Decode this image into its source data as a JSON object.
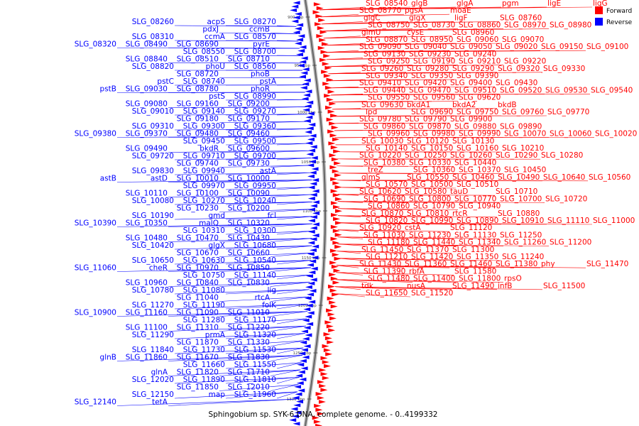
{
  "caption": "Sphingobium sp. SYK-6 DNA, complete genome. - 0..4199332",
  "legend": [
    {
      "label": "Forward",
      "color": "#ff0000"
    },
    {
      "label": "Reverse",
      "color": "#0000ff"
    }
  ],
  "colors": {
    "forward": "#ff0000",
    "reverse": "#0000ff",
    "backbone": "#777777"
  },
  "ticks": [
    "900 kbp",
    "950 kbp",
    "1000 kbp",
    "1050 kbp",
    "1100 kbp",
    "1150 kbp",
    "1200 kbp",
    "1250 kbp",
    "1300 kbp"
  ],
  "reverse_labels": [
    "SLG_08260",
    "acpS",
    "SLG_08270",
    "pdxJ",
    "ccmB",
    "SLG_08310",
    "ccmA",
    "SLG_08570",
    "SLG_08320",
    "SLG_08490",
    "SLG_08690",
    "pyrE",
    "SLG_08550",
    "SLG_08700",
    "SLG_08840",
    "SLG_08510",
    "SLG_08710",
    "SLG_08820",
    "phoU",
    "SLG_08560",
    "SLG_08720",
    "phoB",
    "pstC",
    "SLG_08740",
    "pstA",
    "pstB",
    "SLG_09030",
    "SLG_08780",
    "phoR",
    "pstS",
    "SLG_08990",
    "SLG_09080",
    "SLG_09160",
    "SLG_09200",
    "SLG_09010",
    "SLG_09140",
    "SLG_09270",
    "SLG_09180",
    "SLG_09170",
    "SLG_09310",
    "SLG_09300",
    "SLG_09360",
    "SLG_09380",
    "SLG_09370",
    "SLG_09480",
    "SLG_09460",
    "SLG_09450",
    "SLG_09500",
    "SLG_09490",
    "bkdR",
    "SLG_09600",
    "SLG_09720",
    "SLG_09710",
    "SLG_09700",
    "SLG_09740",
    "SLG_09730",
    "SLG_09830",
    "SLG_09940",
    "astA",
    "astB",
    "astD",
    "SLG_10010",
    "SLG_10000",
    "SLG_09970",
    "SLG_09950",
    "SLG_10110",
    "SLG_10100",
    "SLG_10090",
    "SLG_10080",
    "SLG_10270",
    "SLG_10240",
    "SLG_10230",
    "SLG_10200",
    "SLG_10190",
    "gmd",
    "fcl",
    "SLG_10390",
    "SLG_10350",
    "malQ",
    "SLG_10320",
    "SLG_10310",
    "SLG_10300",
    "SLG_10480",
    "SLG_10470",
    "SLG_10430",
    "SLG_10420",
    "glgX",
    "SLG_10680",
    "SLG_10670",
    "SLG_10660",
    "SLG_10650",
    "SLG_10630",
    "SLG_10540",
    "SLG_11060",
    "cheR",
    "SLG_10970",
    "SLG_10850",
    "SLG_10750",
    "SLG_11140",
    "SLG_10960",
    "SLG_10840",
    "SLG_10830",
    "SLG_10780",
    "SLG_11080",
    "lig",
    "SLG_11040",
    "rtcA",
    "SLG_11270",
    "SLG_11190",
    "folK",
    "SLG_10900",
    "SLG_11160",
    "SLG_11090",
    "SLG_11010",
    "SLG_11280",
    "SLG_11170",
    "SLG_11100",
    "SLG_11310",
    "SLG_11220",
    "SLG_11290",
    "prmA",
    "SLG_11320",
    "SLG_11870",
    "SLG_11330",
    "SLG_11840",
    "SLG_11730",
    "SLG_11530",
    "glnB",
    "SLG_11860",
    "SLG_11670",
    "SLG_11830",
    "SLG_11660",
    "SLG_11550",
    "glnA",
    "SLG_11820",
    "SLG_11710",
    "SLG_12020",
    "SLG_11890",
    "SLG_11810",
    "SLG_11850",
    "SLG_12010",
    "SLG_12150",
    "map",
    "SLG_11960",
    "SLG_12140",
    "tetA"
  ],
  "forward_labels": [
    "SLG_08540",
    "glgB",
    "glgA",
    "pgm",
    "ligE",
    "ligG",
    "SLG_08770",
    "pgsA",
    "moaE",
    "glgC",
    "glgX",
    "ligF",
    "SLG_08760",
    "SLG_08750",
    "SLG_08730",
    "SLG_08860",
    "SLG_08970",
    "SLG_08980",
    "glmU",
    "cysE",
    "SLG_08960",
    "SLG_08870",
    "SLG_08950",
    "SLG_09060",
    "SLG_09070",
    "SLG_09090",
    "SLG_09040",
    "SLG_09050",
    "SLG_09020",
    "SLG_09150",
    "SLG_09100",
    "SLG_09130",
    "SLG_09230",
    "SLG_09240",
    "SLG_09250",
    "SLG_09190",
    "SLG_09210",
    "SLG_09220",
    "SLG_09260",
    "SLG_09280",
    "SLG_09290",
    "SLG_09320",
    "SLG_09330",
    "SLG_09340",
    "SLG_09350",
    "SLG_09390",
    "SLG_09410",
    "SLG_09420",
    "SLG_09400",
    "SLG_09430",
    "SLG_09440",
    "SLG_09470",
    "SLG_09510",
    "SLG_09520",
    "SLG_09530",
    "SLG_09540",
    "SLG_09550",
    "SLG_09560",
    "SLG_09620",
    "SLG_09630",
    "bkdA1",
    "bkdA2",
    "bkdB",
    "lpd",
    "SLG_09690",
    "SLG_09750",
    "SLG_09760",
    "SLG_09770",
    "SLG_09780",
    "SLG_09790",
    "SLG_09900",
    "SLG_09860",
    "SLG_09870",
    "SLG_09880",
    "SLG_09890",
    "SLG_09960",
    "SLG_09980",
    "SLG_09990",
    "SLG_10070",
    "SLG_10060",
    "SLG_10020",
    "SLG_10030",
    "SLG_10120",
    "SLG_10130",
    "SLG_10140",
    "SLG_10150",
    "SLG_10160",
    "SLG_10210",
    "SLG_10220",
    "SLG_10250",
    "SLG_10260",
    "SLG_10290",
    "SLG_10280",
    "SLG_10380",
    "SLG_10330",
    "SLG_10440",
    "treZ",
    "SLG_10360",
    "SLG_10370",
    "SLG_10450",
    "glmS",
    "SLG_10550",
    "SLG_10460",
    "SLG_10490",
    "SLG_10640",
    "SLG_10560",
    "SLG_10570",
    "SLG_10500",
    "SLG_10510",
    "SLG_10620",
    "SLG_10580",
    "tauD",
    "SLG_10710",
    "SLG_10690",
    "SLG_10800",
    "SLG_10770",
    "SLG_10700",
    "SLG_10720",
    "SLG_10860",
    "SLG_10790",
    "SLG_10940",
    "SLG_10870",
    "SLG_10810",
    "rtcR",
    "SLG_10880",
    "SLG_10820",
    "SLG_10990",
    "SLG_10890",
    "SLG_10910",
    "SLG_11110",
    "SLG_11000",
    "SLG_10920",
    "cstA",
    "SLG_11120",
    "SLG_11030",
    "SLG_11230",
    "SLG_11130",
    "SLG_11250",
    "SLG_11180",
    "SLG_11440",
    "SLG_11340",
    "SLG_11260",
    "SLG_11200",
    "SLG_11450",
    "SLG_11370",
    "SLG_11300",
    "SLG_11210",
    "SLG_11420",
    "SLG_11350",
    "SLG_11240",
    "SLG_11430",
    "SLG_11360",
    "SLG_11460",
    "SLG_11380",
    "phy",
    "SLG_11470",
    "SLG_11390",
    "rbfA",
    "SLG_11580",
    "SLG_11480",
    "SLG_11400",
    "SLG_11800",
    "rpsO",
    "tdk",
    "nusA",
    "SLG_11490",
    "infB",
    "SLG_11500",
    "SLG_11650",
    "SLG_11520"
  ]
}
